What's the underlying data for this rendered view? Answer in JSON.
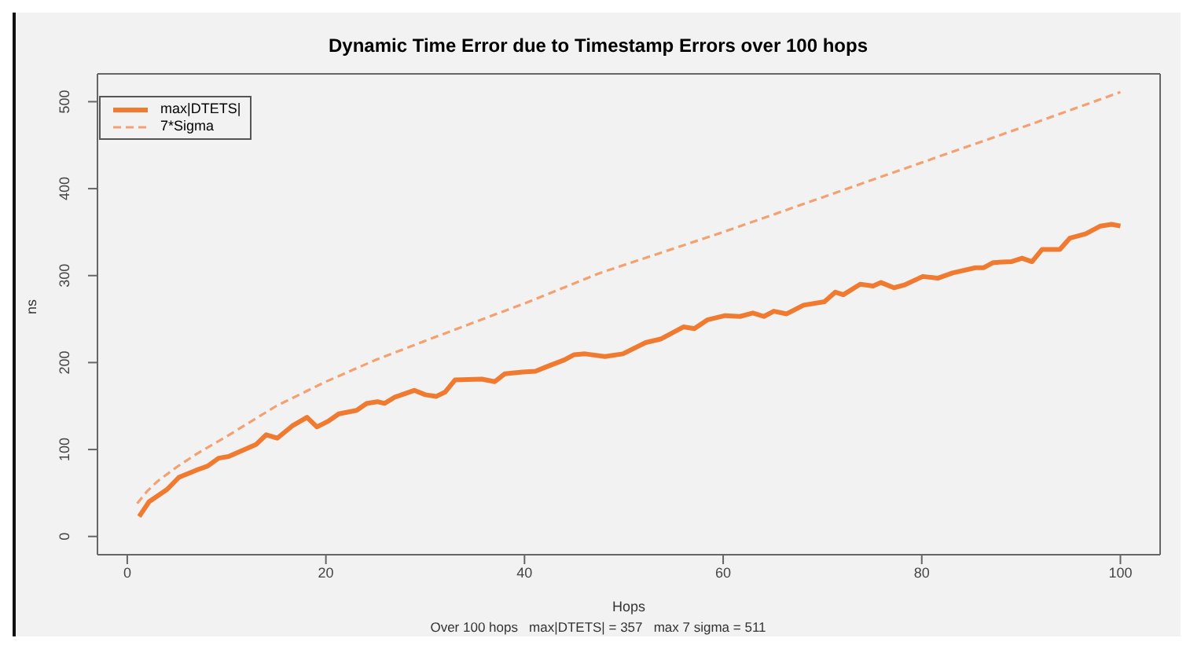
{
  "chart_data": {
    "type": "line",
    "title": "Dynamic Time Error due to Timestamp Errors over 100 hops",
    "xlabel": "Hops",
    "ylabel": "ns",
    "annotations": [
      "Over 100 hops   max|DTETS| = 357   max 7 sigma = 511"
    ],
    "xlim": [
      -3,
      104
    ],
    "xticks": [
      0,
      20,
      40,
      60,
      80,
      100
    ],
    "ylim": [
      -21,
      532
    ],
    "yticks": [
      0,
      100,
      200,
      300,
      400,
      500
    ],
    "legend": "top left",
    "marker": "none",
    "series": [
      {
        "name": "max|DTETS|",
        "color": "#f07a30",
        "line_style": "solid",
        "x": [
          1.2,
          2.2,
          4,
          5.2,
          6.9,
          8.1,
          9.2,
          10.2,
          13,
          14,
          15.1,
          16.6,
          18.1,
          19.1,
          20.3,
          21.3,
          23.1,
          24.1,
          25.2,
          25.9,
          26.9,
          28.9,
          30,
          31.1,
          32,
          33,
          35.7,
          37,
          38,
          39.8,
          41.1,
          42.4,
          44,
          45,
          46.1,
          48.1,
          49.9,
          52.2,
          53.7,
          56,
          57.1,
          58.4,
          60.2,
          61.7,
          63,
          64.1,
          65.1,
          66.4,
          68.1,
          70.2,
          71.3,
          72.1,
          73.8,
          75.1,
          75.9,
          77.2,
          78.2,
          80.1,
          81.6,
          83.1,
          85.4,
          86.2,
          87.2,
          89,
          90.1,
          91.1,
          92.1,
          93.9,
          94.9,
          96.5,
          98,
          99.1,
          100
        ],
        "values": [
          23,
          40,
          54,
          68,
          76,
          81,
          90,
          92,
          106,
          117,
          113,
          127,
          137,
          126,
          133,
          141,
          145,
          153,
          155,
          153,
          160,
          168,
          163,
          161,
          166,
          180,
          181,
          178,
          187,
          189,
          190,
          196,
          203,
          209,
          210,
          207,
          210,
          223,
          227,
          241,
          239,
          249,
          254,
          253,
          257,
          253,
          259,
          256,
          266,
          270,
          281,
          278,
          290,
          288,
          292,
          286,
          289,
          299,
          297,
          303,
          309,
          309,
          315,
          316,
          320,
          316,
          330,
          330,
          343,
          348,
          357,
          359,
          357
        ]
      },
      {
        "name": "7*Sigma",
        "color": "#f4a070",
        "line_style": "dashed",
        "x": [
          1,
          2,
          3,
          5,
          7,
          10,
          15,
          20,
          25,
          30,
          40,
          47.6,
          60,
          70,
          80,
          90,
          100
        ],
        "values": [
          38,
          52,
          63,
          80,
          95,
          115,
          150,
          178,
          203,
          225,
          268,
          303,
          350,
          390,
          430,
          470,
          511
        ]
      }
    ]
  }
}
